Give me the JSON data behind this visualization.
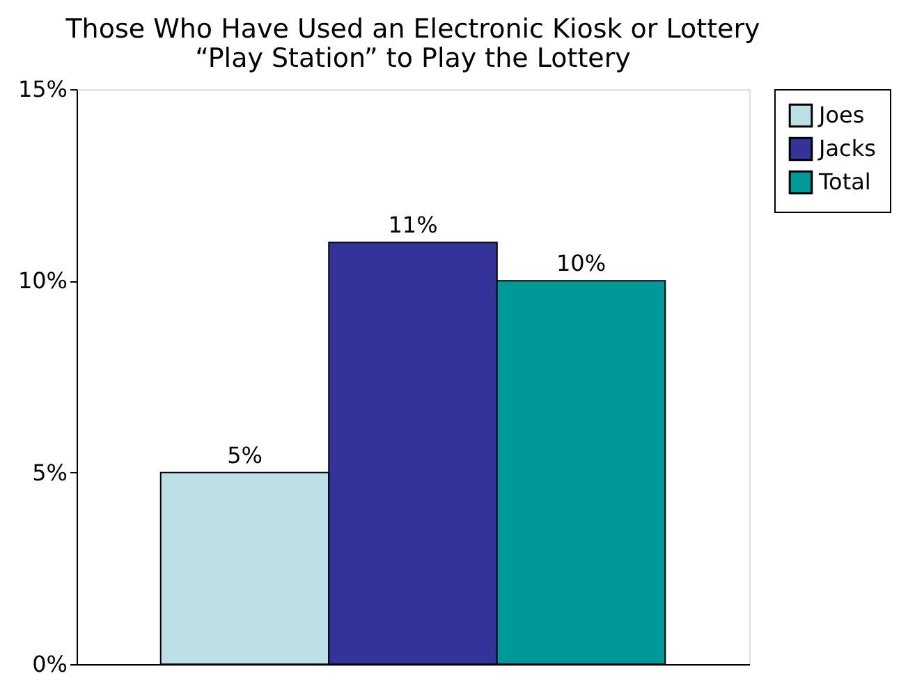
{
  "chart_data": {
    "type": "bar",
    "title": "Those Who Have Used an Electronic Kiosk or Lottery “Play Station” to Play the Lottery",
    "categories": [
      null
    ],
    "series": [
      {
        "name": "Joes",
        "color": "#bde0e6",
        "values": [
          5
        ],
        "value_labels": [
          "5%"
        ]
      },
      {
        "name": "Jacks",
        "color": "#333399",
        "values": [
          11
        ],
        "value_labels": [
          "11%"
        ]
      },
      {
        "name": "Total",
        "color": "#009999",
        "values": [
          10
        ],
        "value_labels": [
          "10%"
        ]
      }
    ],
    "ylim": [
      0,
      15
    ],
    "yticks": [
      {
        "value": 0,
        "label": "0%"
      },
      {
        "value": 5,
        "label": "5%"
      },
      {
        "value": 10,
        "label": "10%"
      },
      {
        "value": 15,
        "label": "15%"
      }
    ],
    "grid": false,
    "legend": "right"
  }
}
